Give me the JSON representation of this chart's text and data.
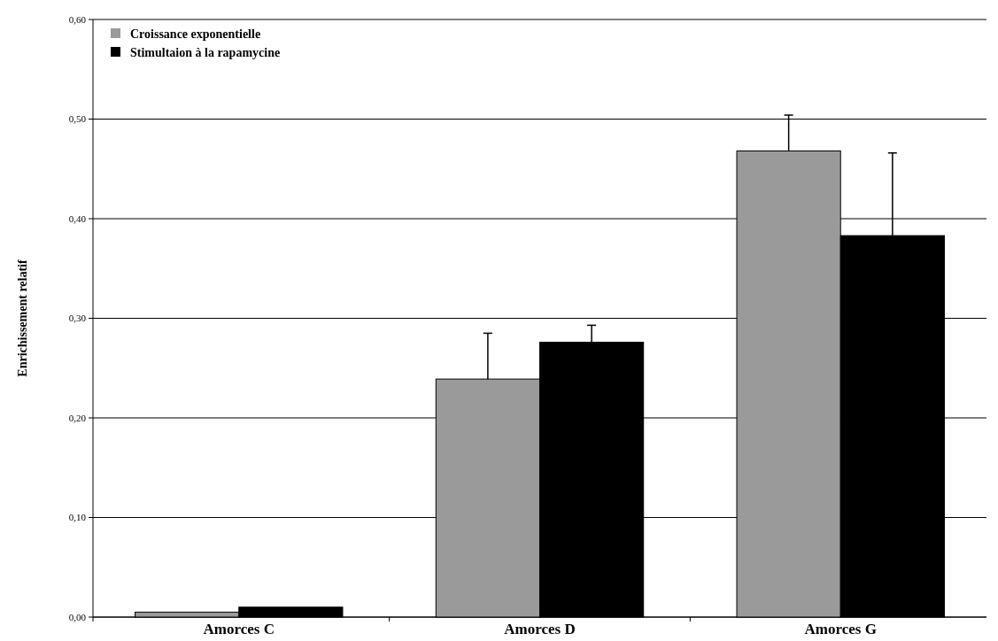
{
  "chart_data": {
    "type": "bar",
    "ylabel": "Enrichissement relatif",
    "categories": [
      "Amorces C",
      "Amorces D",
      "Amorces G"
    ],
    "series": [
      {
        "name": "Croissance exponentielle",
        "color": "#9a9a9a",
        "values": [
          0.005,
          0.239,
          0.468
        ],
        "errors": [
          null,
          [
            0.239,
            0.285
          ],
          [
            0.468,
            0.504
          ]
        ]
      },
      {
        "name": "Stimultaion à la rapamycine",
        "color": "#000000",
        "values": [
          0.01,
          0.276,
          0.383
        ],
        "errors": [
          null,
          [
            0.276,
            0.293
          ],
          [
            0.383,
            0.466
          ]
        ]
      }
    ],
    "ylim": [
      0,
      0.6
    ],
    "yticks": [
      {
        "value": 0,
        "label": "0,00"
      },
      {
        "value": 0.1,
        "label": "0,10"
      },
      {
        "value": 0.2,
        "label": "0,20"
      },
      {
        "value": 0.3,
        "label": "0,30"
      },
      {
        "value": 0.4,
        "label": "0,40"
      },
      {
        "value": 0.5,
        "label": "0,50"
      },
      {
        "value": 0.6,
        "label": "0,60"
      }
    ],
    "grid": "y",
    "legend": "top left"
  }
}
